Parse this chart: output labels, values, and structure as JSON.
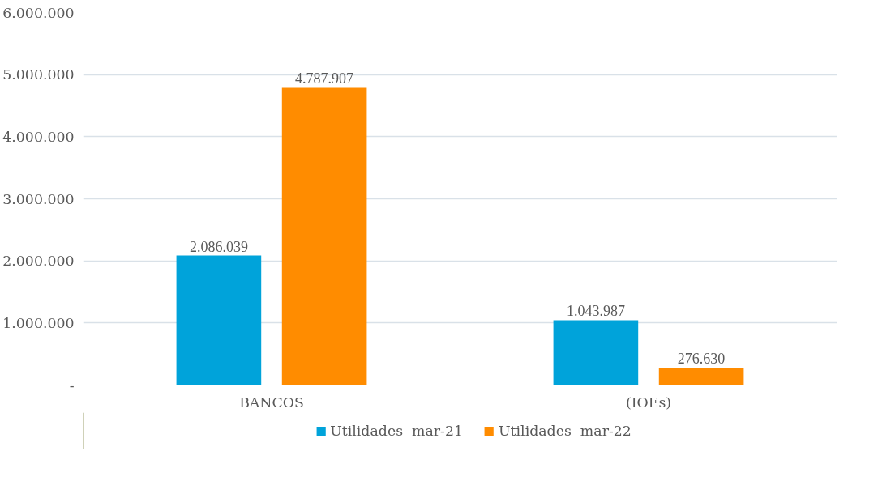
{
  "chart_data": {
    "type": "bar",
    "categories": [
      "BANCOS",
      "(IOEs)"
    ],
    "series": [
      {
        "name": "Utilidades  mar-21",
        "color": "#00a3da",
        "values": [
          2086039,
          1043987
        ],
        "value_labels": [
          "2.086.039",
          "1.043.987"
        ]
      },
      {
        "name": "Utilidades  mar-22",
        "color": "#ff8c00",
        "values": [
          4787907,
          276630
        ],
        "value_labels": [
          "4.787.907",
          "276.630"
        ]
      }
    ],
    "ylim": [
      0,
      6000000
    ],
    "yticks": [
      {
        "value": 0,
        "label": "-"
      },
      {
        "value": 1000000,
        "label": "1.000.000"
      },
      {
        "value": 2000000,
        "label": "2.000.000"
      },
      {
        "value": 3000000,
        "label": "3.000.000"
      },
      {
        "value": 4000000,
        "label": "4.000.000"
      },
      {
        "value": 5000000,
        "label": "5.000.000"
      },
      {
        "value": 6000000,
        "label": "6.000.000"
      }
    ],
    "grid": "y",
    "legend": "bottom"
  }
}
